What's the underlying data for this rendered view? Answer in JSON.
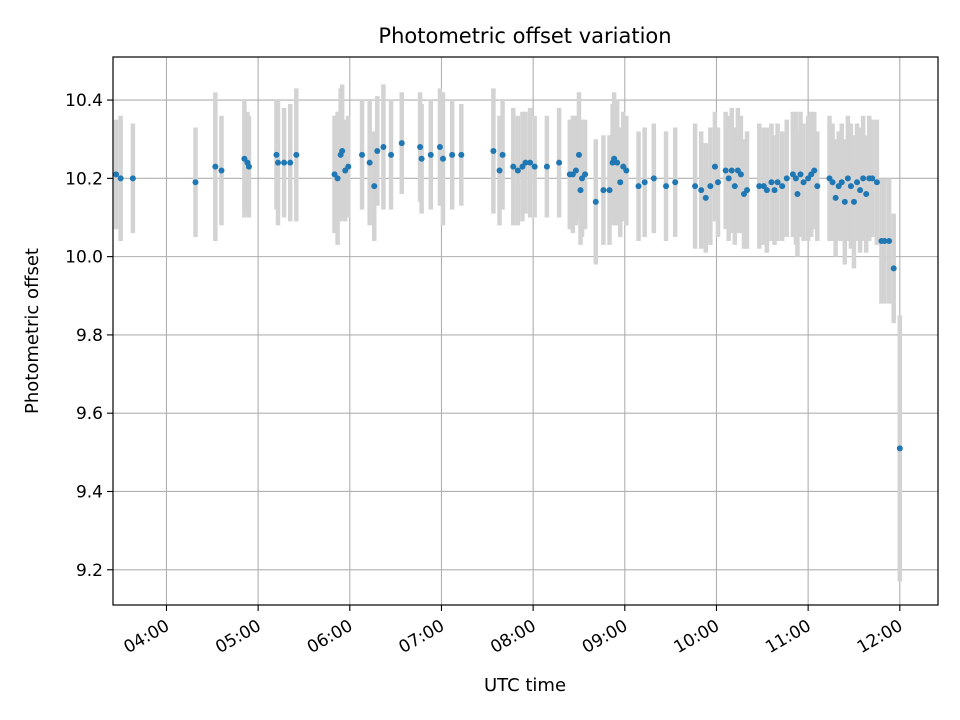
{
  "chart_data": {
    "type": "scatter",
    "title": "Photometric offset variation",
    "xlabel": "UTC time",
    "ylabel": "Photometric offset",
    "xlim": [
      "03:25",
      "12:25"
    ],
    "ylim": [
      9.11,
      10.51
    ],
    "x_ticks": [
      "04:00",
      "05:00",
      "06:00",
      "07:00",
      "08:00",
      "09:00",
      "10:00",
      "11:00",
      "12:00"
    ],
    "y_ticks": [
      "9.2",
      "9.4",
      "9.6",
      "9.8",
      "10.0",
      "10.2",
      "10.4"
    ],
    "grid": true,
    "colors": {
      "points": "#1f77b4",
      "errorbars": "#d3d3d3",
      "grid": "#b0b0b0"
    },
    "series": [
      {
        "points": [
          {
            "x": "03:27",
            "y": 10.21,
            "err": 0.14
          },
          {
            "x": "03:30",
            "y": 10.2,
            "err": 0.16
          },
          {
            "x": "03:38",
            "y": 10.2,
            "err": 0.14
          },
          {
            "x": "04:19",
            "y": 10.19,
            "err": 0.14
          },
          {
            "x": "04:32",
            "y": 10.23,
            "err": 0.19
          },
          {
            "x": "04:36",
            "y": 10.22,
            "err": 0.14
          },
          {
            "x": "04:51",
            "y": 10.25,
            "err": 0.15
          },
          {
            "x": "04:53",
            "y": 10.24,
            "err": 0.13
          },
          {
            "x": "04:54",
            "y": 10.23,
            "err": 0.13
          },
          {
            "x": "05:12",
            "y": 10.26,
            "err": 0.14
          },
          {
            "x": "05:13",
            "y": 10.24,
            "err": 0.16
          },
          {
            "x": "05:17",
            "y": 10.24,
            "err": 0.14
          },
          {
            "x": "05:21",
            "y": 10.24,
            "err": 0.15
          },
          {
            "x": "05:25",
            "y": 10.26,
            "err": 0.17
          },
          {
            "x": "05:50",
            "y": 10.21,
            "err": 0.15
          },
          {
            "x": "05:52",
            "y": 10.2,
            "err": 0.17
          },
          {
            "x": "05:54",
            "y": 10.26,
            "err": 0.17
          },
          {
            "x": "05:55",
            "y": 10.27,
            "err": 0.17
          },
          {
            "x": "05:57",
            "y": 10.22,
            "err": 0.13
          },
          {
            "x": "05:59",
            "y": 10.23,
            "err": 0.13
          },
          {
            "x": "06:08",
            "y": 10.26,
            "err": 0.14
          },
          {
            "x": "06:13",
            "y": 10.24,
            "err": 0.16
          },
          {
            "x": "06:16",
            "y": 10.18,
            "err": 0.14
          },
          {
            "x": "06:18",
            "y": 10.27,
            "err": 0.14
          },
          {
            "x": "06:22",
            "y": 10.28,
            "err": 0.16
          },
          {
            "x": "06:27",
            "y": 10.26,
            "err": 0.14
          },
          {
            "x": "06:34",
            "y": 10.29,
            "err": 0.13
          },
          {
            "x": "06:46",
            "y": 10.28,
            "err": 0.14
          },
          {
            "x": "06:47",
            "y": 10.25,
            "err": 0.14
          },
          {
            "x": "06:53",
            "y": 10.26,
            "err": 0.14
          },
          {
            "x": "06:59",
            "y": 10.28,
            "err": 0.15
          },
          {
            "x": "07:01",
            "y": 10.25,
            "err": 0.17
          },
          {
            "x": "07:07",
            "y": 10.26,
            "err": 0.14
          },
          {
            "x": "07:13",
            "y": 10.26,
            "err": 0.13
          },
          {
            "x": "07:34",
            "y": 10.27,
            "err": 0.16
          },
          {
            "x": "07:38",
            "y": 10.22,
            "err": 0.14
          },
          {
            "x": "07:40",
            "y": 10.26,
            "err": 0.14
          },
          {
            "x": "07:47",
            "y": 10.23,
            "err": 0.15
          },
          {
            "x": "07:50",
            "y": 10.22,
            "err": 0.14
          },
          {
            "x": "07:53",
            "y": 10.23,
            "err": 0.14
          },
          {
            "x": "07:55",
            "y": 10.24,
            "err": 0.13
          },
          {
            "x": "07:58",
            "y": 10.24,
            "err": 0.14
          },
          {
            "x": "08:01",
            "y": 10.23,
            "err": 0.13
          },
          {
            "x": "08:09",
            "y": 10.23,
            "err": 0.13
          },
          {
            "x": "08:17",
            "y": 10.24,
            "err": 0.14
          },
          {
            "x": "08:24",
            "y": 10.21,
            "err": 0.14
          },
          {
            "x": "08:26",
            "y": 10.21,
            "err": 0.15
          },
          {
            "x": "08:28",
            "y": 10.22,
            "err": 0.14
          },
          {
            "x": "08:30",
            "y": 10.26,
            "err": 0.16
          },
          {
            "x": "08:31",
            "y": 10.17,
            "err": 0.14
          },
          {
            "x": "08:32",
            "y": 10.2,
            "err": 0.15
          },
          {
            "x": "08:34",
            "y": 10.21,
            "err": 0.14
          },
          {
            "x": "08:41",
            "y": 10.14,
            "err": 0.16
          },
          {
            "x": "08:46",
            "y": 10.17,
            "err": 0.14
          },
          {
            "x": "08:50",
            "y": 10.17,
            "err": 0.14
          },
          {
            "x": "08:52",
            "y": 10.24,
            "err": 0.15
          },
          {
            "x": "08:53",
            "y": 10.25,
            "err": 0.17
          },
          {
            "x": "08:55",
            "y": 10.24,
            "err": 0.16
          },
          {
            "x": "08:57",
            "y": 10.19,
            "err": 0.14
          },
          {
            "x": "08:59",
            "y": 10.23,
            "err": 0.14
          },
          {
            "x": "09:01",
            "y": 10.22,
            "err": 0.14
          },
          {
            "x": "09:09",
            "y": 10.18,
            "err": 0.14
          },
          {
            "x": "09:13",
            "y": 10.19,
            "err": 0.14
          },
          {
            "x": "09:19",
            "y": 10.2,
            "err": 0.14
          },
          {
            "x": "09:27",
            "y": 10.18,
            "err": 0.14
          },
          {
            "x": "09:33",
            "y": 10.19,
            "err": 0.14
          },
          {
            "x": "09:46",
            "y": 10.18,
            "err": 0.16
          },
          {
            "x": "09:50",
            "y": 10.17,
            "err": 0.15
          },
          {
            "x": "09:53",
            "y": 10.15,
            "err": 0.14
          },
          {
            "x": "09:56",
            "y": 10.18,
            "err": 0.15
          },
          {
            "x": "09:59",
            "y": 10.23,
            "err": 0.14
          },
          {
            "x": "10:01",
            "y": 10.19,
            "err": 0.14
          },
          {
            "x": "10:06",
            "y": 10.22,
            "err": 0.15
          },
          {
            "x": "10:08",
            "y": 10.2,
            "err": 0.16
          },
          {
            "x": "10:10",
            "y": 10.22,
            "err": 0.16
          },
          {
            "x": "10:12",
            "y": 10.18,
            "err": 0.15
          },
          {
            "x": "10:14",
            "y": 10.22,
            "err": 0.16
          },
          {
            "x": "10:16",
            "y": 10.21,
            "err": 0.15
          },
          {
            "x": "10:18",
            "y": 10.16,
            "err": 0.14
          },
          {
            "x": "10:20",
            "y": 10.17,
            "err": 0.15
          },
          {
            "x": "10:28",
            "y": 10.18,
            "err": 0.16
          },
          {
            "x": "10:31",
            "y": 10.18,
            "err": 0.15
          },
          {
            "x": "10:33",
            "y": 10.17,
            "err": 0.16
          },
          {
            "x": "10:36",
            "y": 10.19,
            "err": 0.15
          },
          {
            "x": "10:38",
            "y": 10.17,
            "err": 0.14
          },
          {
            "x": "10:40",
            "y": 10.19,
            "err": 0.15
          },
          {
            "x": "10:43",
            "y": 10.18,
            "err": 0.14
          },
          {
            "x": "10:46",
            "y": 10.2,
            "err": 0.15
          },
          {
            "x": "10:50",
            "y": 10.21,
            "err": 0.16
          },
          {
            "x": "10:52",
            "y": 10.2,
            "err": 0.17
          },
          {
            "x": "10:53",
            "y": 10.16,
            "err": 0.16
          },
          {
            "x": "10:55",
            "y": 10.21,
            "err": 0.16
          },
          {
            "x": "10:57",
            "y": 10.19,
            "err": 0.15
          },
          {
            "x": "11:00",
            "y": 10.2,
            "err": 0.16
          },
          {
            "x": "11:02",
            "y": 10.21,
            "err": 0.16
          },
          {
            "x": "11:04",
            "y": 10.22,
            "err": 0.15
          },
          {
            "x": "11:06",
            "y": 10.18,
            "err": 0.14
          },
          {
            "x": "11:14",
            "y": 10.2,
            "err": 0.16
          },
          {
            "x": "11:16",
            "y": 10.19,
            "err": 0.15
          },
          {
            "x": "11:18",
            "y": 10.15,
            "err": 0.15
          },
          {
            "x": "11:20",
            "y": 10.18,
            "err": 0.14
          },
          {
            "x": "11:22",
            "y": 10.19,
            "err": 0.15
          },
          {
            "x": "11:24",
            "y": 10.14,
            "err": 0.16
          },
          {
            "x": "11:26",
            "y": 10.2,
            "err": 0.16
          },
          {
            "x": "11:28",
            "y": 10.18,
            "err": 0.16
          },
          {
            "x": "11:30",
            "y": 10.14,
            "err": 0.17
          },
          {
            "x": "11:32",
            "y": 10.19,
            "err": 0.15
          },
          {
            "x": "11:34",
            "y": 10.17,
            "err": 0.16
          },
          {
            "x": "11:36",
            "y": 10.2,
            "err": 0.16
          },
          {
            "x": "11:38",
            "y": 10.16,
            "err": 0.15
          },
          {
            "x": "11:40",
            "y": 10.2,
            "err": 0.16
          },
          {
            "x": "11:42",
            "y": 10.2,
            "err": 0.15
          },
          {
            "x": "11:45",
            "y": 10.19,
            "err": 0.16
          },
          {
            "x": "11:48",
            "y": 10.04,
            "err": 0.16
          },
          {
            "x": "11:50",
            "y": 10.04,
            "err": 0.16
          },
          {
            "x": "11:53",
            "y": 10.04,
            "err": 0.16
          },
          {
            "x": "11:56",
            "y": 9.97,
            "err": 0.14
          },
          {
            "x": "12:00",
            "y": 9.51,
            "err": 0.34
          }
        ]
      }
    ]
  }
}
